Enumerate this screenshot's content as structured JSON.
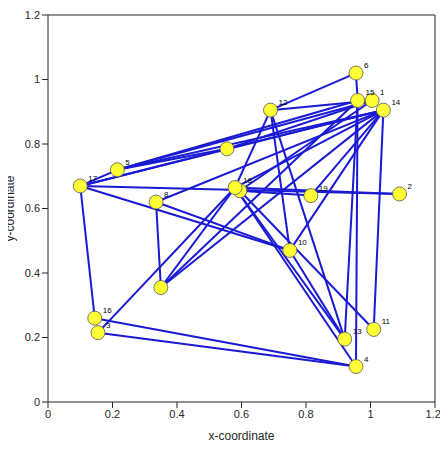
{
  "chart_data": {
    "type": "network",
    "xlabel": "x-coordinate",
    "ylabel": "y-coordinate",
    "xlim": [
      0,
      1.2
    ],
    "ylim": [
      0,
      1.2
    ],
    "xticks": [
      0,
      0.2,
      0.4,
      0.6,
      0.8,
      1,
      1.2
    ],
    "yticks": [
      0,
      0.2,
      0.4,
      0.6,
      0.8,
      1,
      1.2
    ],
    "color": "#1a1ad4",
    "marker": "circle",
    "nodes": [
      {
        "label": "1",
        "x": 1.005,
        "y": 0.935
      },
      {
        "label": "2",
        "x": 1.09,
        "y": 0.645
      },
      {
        "label": "3",
        "x": 0.155,
        "y": 0.215
      },
      {
        "label": "4",
        "x": 0.955,
        "y": 0.11
      },
      {
        "label": "5",
        "x": 0.215,
        "y": 0.72
      },
      {
        "label": "6",
        "x": 0.955,
        "y": 1.02
      },
      {
        "label": null,
        "x": 0.555,
        "y": 0.785
      },
      {
        "label": "8",
        "x": 0.335,
        "y": 0.62
      },
      {
        "label": null,
        "x": 0.595,
        "y": 0.655
      },
      {
        "label": "10",
        "x": 0.75,
        "y": 0.47
      },
      {
        "label": "11",
        "x": 1.01,
        "y": 0.225
      },
      {
        "label": "12",
        "x": 0.69,
        "y": 0.905
      },
      {
        "label": "13",
        "x": 0.92,
        "y": 0.195
      },
      {
        "label": "14",
        "x": 1.04,
        "y": 0.905
      },
      {
        "label": "15",
        "x": 0.96,
        "y": 0.935
      },
      {
        "label": "16",
        "x": 0.145,
        "y": 0.26
      },
      {
        "label": "17",
        "x": 0.1,
        "y": 0.67
      },
      {
        "label": "18",
        "x": 0.58,
        "y": 0.665
      },
      {
        "label": "19",
        "x": 0.815,
        "y": 0.64
      },
      {
        "label": null,
        "x": 0.35,
        "y": 0.355
      }
    ],
    "edges": [
      [
        5,
        11
      ],
      [
        5,
        14
      ],
      [
        11,
        0
      ],
      [
        11,
        9
      ],
      [
        11,
        12
      ],
      [
        11,
        17
      ],
      [
        4,
        6
      ],
      [
        4,
        14
      ],
      [
        4,
        13
      ],
      [
        4,
        0
      ],
      [
        4,
        16
      ],
      [
        16,
        6
      ],
      [
        16,
        13
      ],
      [
        16,
        1
      ],
      [
        16,
        9
      ],
      [
        16,
        15
      ],
      [
        6,
        13
      ],
      [
        6,
        0
      ],
      [
        7,
        19
      ],
      [
        7,
        13
      ],
      [
        7,
        9
      ],
      [
        17,
        1
      ],
      [
        17,
        3
      ],
      [
        17,
        12
      ],
      [
        17,
        19
      ],
      [
        17,
        13
      ],
      [
        17,
        2
      ],
      [
        8,
        10
      ],
      [
        8,
        0
      ],
      [
        8,
        18
      ],
      [
        19,
        13
      ],
      [
        19,
        14
      ],
      [
        18,
        13
      ],
      [
        2,
        3
      ],
      [
        15,
        3
      ],
      [
        12,
        14
      ],
      [
        12,
        9
      ],
      [
        10,
        13
      ],
      [
        3,
        14
      ],
      [
        9,
        13
      ]
    ]
  }
}
